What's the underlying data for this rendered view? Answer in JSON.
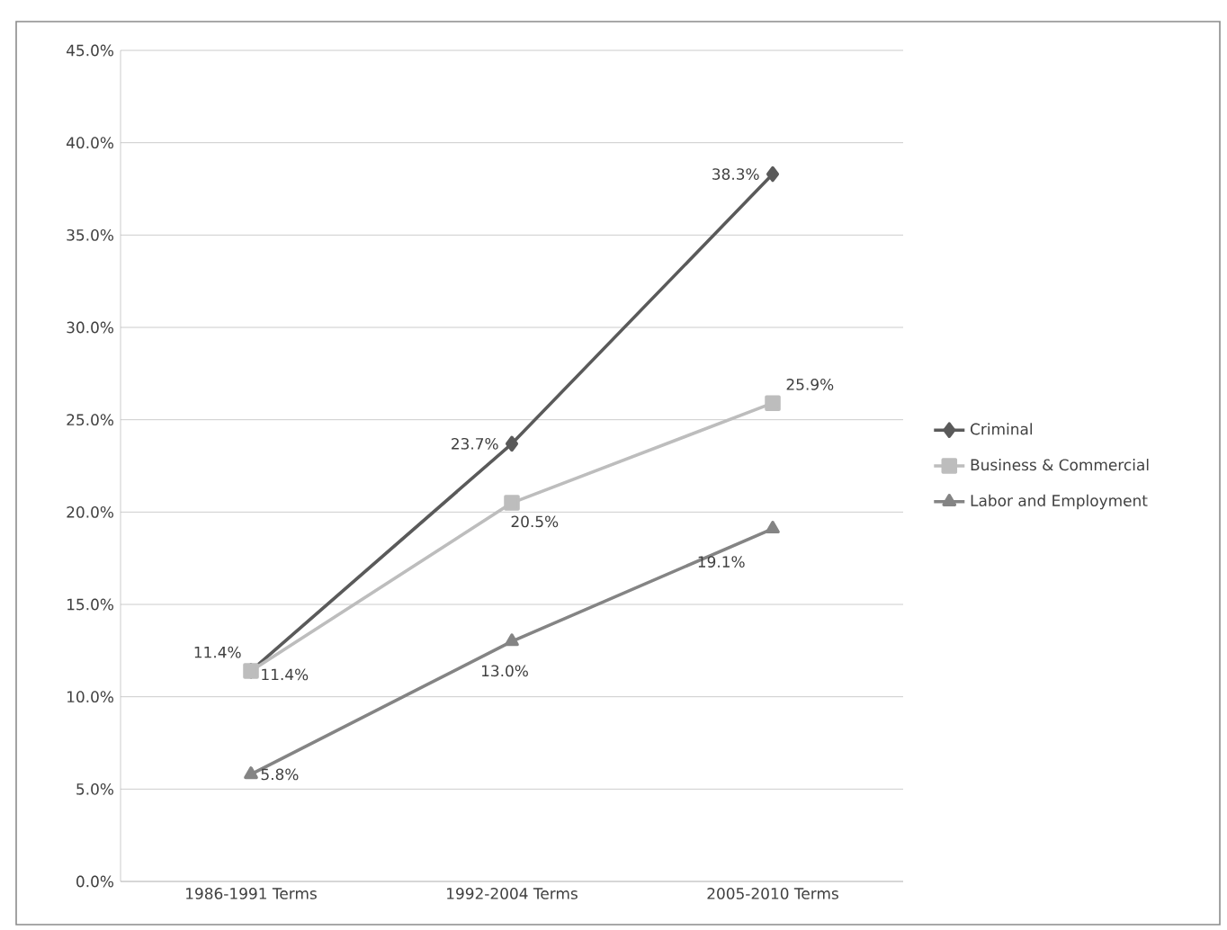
{
  "chart_data": {
    "type": "line",
    "categories": [
      "1986-1991 Terms",
      "1992-2004 Terms",
      "2005-2010 Terms"
    ],
    "series": [
      {
        "name": "Criminal",
        "color": "#5a5a5a",
        "marker": "diamond",
        "values": [
          11.4,
          23.7,
          38.3
        ],
        "value_labels": [
          "11.4%",
          "23.7%",
          "38.3%"
        ]
      },
      {
        "name": "Business & Commercial",
        "color": "#bdbdbd",
        "marker": "square",
        "values": [
          11.4,
          20.5,
          25.9
        ],
        "value_labels": [
          "11.4%",
          "20.5%",
          "25.9%"
        ]
      },
      {
        "name": "Labor and Employment",
        "color": "#848484",
        "marker": "triangle",
        "values": [
          5.8,
          13.0,
          19.1
        ],
        "value_labels": [
          "5.8%",
          "13.0%",
          "19.1%"
        ]
      }
    ],
    "ylim": [
      0,
      45
    ],
    "yticks": [
      {
        "value": 0,
        "label": "0.0%"
      },
      {
        "value": 5,
        "label": "5.0%"
      },
      {
        "value": 10,
        "label": "10.0%"
      },
      {
        "value": 15,
        "label": "15.0%"
      },
      {
        "value": 20,
        "label": "20.0%"
      },
      {
        "value": 25,
        "label": "25.0%"
      },
      {
        "value": 30,
        "label": "30.0%"
      },
      {
        "value": 35,
        "label": "35.0%"
      },
      {
        "value": 40,
        "label": "40.0%"
      },
      {
        "value": 45,
        "label": "45.0%"
      }
    ],
    "grid": "y",
    "legend": "right",
    "line_style": "solid"
  }
}
